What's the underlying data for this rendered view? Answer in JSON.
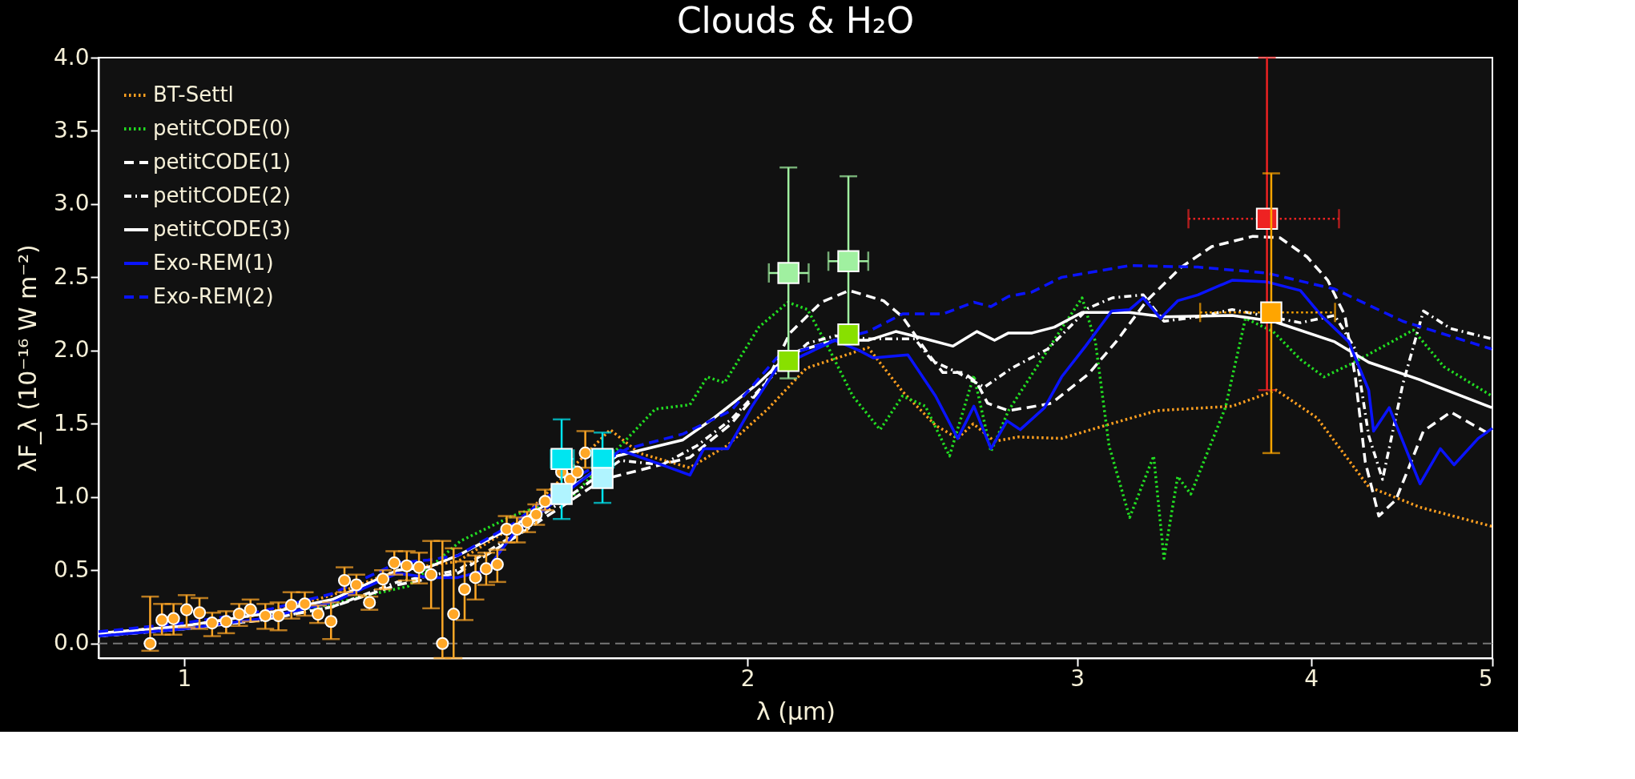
{
  "chart_data": {
    "type": "line",
    "title": "Clouds & H₂O",
    "xlabel": "λ (µm)",
    "ylabel": "λF_λ (10⁻¹⁶ W m⁻²)",
    "log": "x",
    "xlim": [
      0.9,
      5
    ],
    "xticks": [
      1,
      2,
      3,
      4,
      5
    ],
    "ylim": [
      -0.1,
      4.0
    ],
    "yticks": [
      {
        "value": 0,
        "label": "0.0"
      },
      {
        "value": 0.5,
        "label": "0.5"
      },
      {
        "value": 1,
        "label": "1.0"
      },
      {
        "value": 1.5,
        "label": "1.5"
      },
      {
        "value": 2,
        "label": "2.0"
      },
      {
        "value": 2.5,
        "label": "2.5"
      },
      {
        "value": 3,
        "label": "3.0"
      },
      {
        "value": 3.5,
        "label": "3.5"
      },
      {
        "value": 4,
        "label": "4.0"
      }
    ],
    "grid": false,
    "legend": "top left",
    "ref_lines": [
      {
        "axis": "y",
        "value": 0,
        "color": "#777777",
        "line_style": "dashed"
      }
    ],
    "series": [
      {
        "name": "BT-Settl",
        "color": "#ffa020",
        "line_style": "dotted",
        "x": [
          0.9,
          1.0,
          1.1,
          1.2,
          1.3,
          1.4,
          1.5,
          1.689,
          1.75,
          1.862,
          1.95,
          2.05,
          2.15,
          2.32,
          2.42,
          2.52,
          2.59,
          2.64,
          2.71,
          2.79,
          2.943,
          3.108,
          3.31,
          3.63,
          3.833,
          4.03,
          4.294,
          4.574,
          4.996
        ],
        "values": [
          0.07,
          0.12,
          0.2,
          0.33,
          0.5,
          0.56,
          0.8,
          1.46,
          1.3,
          1.2,
          1.35,
          1.6,
          1.88,
          2.02,
          1.72,
          1.49,
          1.4,
          1.5,
          1.38,
          1.41,
          1.4,
          1.49,
          1.59,
          1.62,
          1.73,
          1.54,
          1.07,
          0.93,
          0.8
        ]
      },
      {
        "name": "petitCODE(0)",
        "color": "#22dd22",
        "line_style": "dotted",
        "x": [
          1.1,
          1.2,
          1.253,
          1.317,
          1.405,
          1.497,
          1.617,
          1.725,
          1.785,
          1.863,
          1.903,
          1.944,
          2.028,
          2.102,
          2.153,
          2.209,
          2.276,
          2.354,
          2.42,
          2.489,
          2.564,
          2.642,
          2.698,
          2.757,
          2.943,
          3.018,
          3.068,
          3.12,
          3.2,
          3.296,
          3.338,
          3.395,
          3.45,
          3.6,
          3.69,
          3.818,
          3.948,
          4.064,
          4.204,
          4.536,
          4.71,
          4.996
        ],
        "values": [
          0.17,
          0.27,
          0.33,
          0.39,
          0.7,
          0.87,
          1.02,
          1.4,
          1.6,
          1.63,
          1.82,
          1.78,
          2.16,
          2.33,
          2.28,
          2.02,
          1.69,
          1.46,
          1.69,
          1.62,
          1.28,
          1.83,
          1.31,
          1.59,
          2.15,
          2.36,
          2.06,
          1.35,
          0.86,
          1.28,
          0.58,
          1.14,
          1.02,
          1.61,
          2.22,
          2.13,
          1.94,
          1.82,
          1.91,
          2.14,
          1.89,
          1.69
        ]
      },
      {
        "name": "petitCODE(1)",
        "color": "#ffffff",
        "line_style": "dashed",
        "x": [
          0.9,
          1.0,
          1.1,
          1.2,
          1.3,
          1.4,
          1.5,
          1.674,
          1.863,
          1.96,
          2.046,
          2.107,
          2.19,
          2.266,
          2.364,
          2.42,
          2.5,
          2.543,
          2.608,
          2.652,
          2.687,
          2.757,
          2.82,
          2.907,
          3.042,
          3.147,
          3.268,
          3.41,
          3.54,
          3.724,
          3.85,
          3.98,
          4.083,
          4.17,
          4.224,
          4.276,
          4.348,
          4.44,
          4.593,
          4.75,
          4.996
        ],
        "values": [
          0.05,
          0.1,
          0.16,
          0.25,
          0.4,
          0.48,
          0.72,
          1.12,
          1.27,
          1.5,
          1.78,
          2.12,
          2.33,
          2.41,
          2.34,
          2.23,
          1.97,
          1.85,
          1.85,
          1.78,
          1.64,
          1.59,
          1.61,
          1.64,
          1.84,
          2.06,
          2.34,
          2.57,
          2.71,
          2.78,
          2.77,
          2.64,
          2.48,
          2.24,
          1.82,
          1.24,
          0.87,
          0.98,
          1.45,
          1.58,
          1.42
        ]
      },
      {
        "name": "petitCODE(2)",
        "color": "#ffffff",
        "line_style": "dashdot",
        "x": [
          0.9,
          1.0,
          1.1,
          1.2,
          1.3,
          1.4,
          1.5,
          1.71,
          1.8,
          1.879,
          1.96,
          2.063,
          2.153,
          2.227,
          2.32,
          2.457,
          2.51,
          2.59,
          2.676,
          2.768,
          2.893,
          3.042,
          3.133,
          3.254,
          3.338,
          3.48,
          3.63,
          3.948,
          4.118,
          4.224,
          4.294,
          4.368,
          4.478,
          4.593,
          4.75,
          4.996
        ],
        "values": [
          0.05,
          0.1,
          0.16,
          0.25,
          0.42,
          0.5,
          0.74,
          1.25,
          1.22,
          1.35,
          1.53,
          1.83,
          2.05,
          2.1,
          2.08,
          2.08,
          1.93,
          1.85,
          1.75,
          1.88,
          2.01,
          2.29,
          2.36,
          2.38,
          2.2,
          2.23,
          2.28,
          2.19,
          2.24,
          2.01,
          1.42,
          1.12,
          1.77,
          2.27,
          2.15,
          2.08
        ]
      },
      {
        "name": "petitCODE(3)",
        "color": "#ffffff",
        "line_style": "solid",
        "x": [
          0.9,
          1.0,
          1.1,
          1.2,
          1.3,
          1.35,
          1.4,
          1.5,
          1.703,
          1.847,
          1.919,
          2.028,
          2.107,
          2.227,
          2.32,
          2.4,
          2.489,
          2.575,
          2.652,
          2.71,
          2.757,
          2.838,
          2.917,
          3.018,
          3.2,
          3.338,
          3.63,
          3.818,
          4.118,
          4.294,
          4.574,
          4.996
        ],
        "values": [
          0.07,
          0.12,
          0.2,
          0.3,
          0.5,
          0.52,
          0.6,
          0.8,
          1.28,
          1.39,
          1.54,
          1.78,
          1.98,
          2.07,
          2.07,
          2.13,
          2.08,
          2.03,
          2.13,
          2.07,
          2.12,
          2.12,
          2.16,
          2.26,
          2.26,
          2.23,
          2.24,
          2.2,
          2.06,
          1.92,
          1.8,
          1.61
        ]
      },
      {
        "name": "Exo-REM(1)",
        "color": "#0a14ff",
        "line_style": "solid",
        "x": [
          0.9,
          1.0,
          1.1,
          1.2,
          1.3,
          1.35,
          1.4,
          1.45,
          1.5,
          1.71,
          1.8,
          1.863,
          1.895,
          1.952,
          2.011,
          2.073,
          2.143,
          2.227,
          2.295,
          2.334,
          2.436,
          2.52,
          2.59,
          2.642,
          2.698,
          2.752,
          2.797,
          2.882,
          2.943,
          3.031,
          3.13,
          3.2,
          3.254,
          3.324,
          3.395,
          3.48,
          3.63,
          3.785,
          3.948,
          4.05,
          4.19,
          4.294,
          4.32,
          4.404,
          4.574,
          4.69,
          4.77,
          4.913,
          5.0
        ],
        "values": [
          0.05,
          0.1,
          0.17,
          0.28,
          0.48,
          0.45,
          0.45,
          0.5,
          0.75,
          1.32,
          1.22,
          1.15,
          1.33,
          1.33,
          1.62,
          1.88,
          1.97,
          2.07,
          2.0,
          1.95,
          1.97,
          1.69,
          1.4,
          1.62,
          1.33,
          1.52,
          1.46,
          1.61,
          1.82,
          2.03,
          2.27,
          2.28,
          2.36,
          2.22,
          2.34,
          2.38,
          2.48,
          2.47,
          2.41,
          2.24,
          2.06,
          1.73,
          1.45,
          1.61,
          1.09,
          1.33,
          1.22,
          1.4,
          1.47
        ]
      },
      {
        "name": "Exo-REM(2)",
        "color": "#0a14ff",
        "line_style": "dashed",
        "x": [
          0.9,
          1.0,
          1.1,
          1.2,
          1.3,
          1.35,
          1.4,
          1.5,
          1.6,
          1.725,
          1.847,
          1.96,
          2.073,
          2.227,
          2.32,
          2.42,
          2.543,
          2.642,
          2.698,
          2.757,
          2.838,
          2.943,
          3.2,
          3.48,
          3.785,
          4.118,
          4.478,
          4.996
        ],
        "values": [
          0.08,
          0.14,
          0.22,
          0.34,
          0.55,
          0.57,
          0.6,
          0.82,
          1.1,
          1.33,
          1.43,
          1.59,
          1.95,
          2.07,
          2.13,
          2.25,
          2.25,
          2.33,
          2.3,
          2.37,
          2.4,
          2.5,
          2.58,
          2.57,
          2.53,
          2.42,
          2.2,
          2.01
        ]
      },
      {
        "type": "scatter",
        "marker": "circle",
        "color": "#ffa726",
        "x": [
          0.959,
          0.973,
          0.987,
          1.003,
          1.019,
          1.035,
          1.053,
          1.07,
          1.085,
          1.105,
          1.123,
          1.141,
          1.16,
          1.179,
          1.198,
          1.218,
          1.236,
          1.256,
          1.277,
          1.295,
          1.315,
          1.335,
          1.355,
          1.374,
          1.393,
          1.412,
          1.431,
          1.45,
          1.47,
          1.487,
          1.506,
          1.525,
          1.542,
          1.559,
          1.591,
          1.608,
          1.622,
          1.638
        ],
        "values": [
          0,
          0.16,
          0.17,
          0.23,
          0.21,
          0.14,
          0.15,
          0.2,
          0.23,
          0.19,
          0.19,
          0.26,
          0.27,
          0.2,
          0.15,
          0.43,
          0.4,
          0.28,
          0.44,
          0.55,
          0.53,
          0.52,
          0.47,
          0,
          0.2,
          0.37,
          0.45,
          0.51,
          0.54,
          0.78,
          0.78,
          0.83,
          0.88,
          0.97,
          1.17,
          1.12,
          1.17,
          1.3
        ],
        "errors": [
          [
            -0.05,
            0.32
          ],
          [
            0.06,
            0.27
          ],
          [
            0.06,
            0.27
          ],
          [
            0.11,
            0.33
          ],
          [
            0.1,
            0.31
          ],
          [
            0.05,
            0.21
          ],
          [
            0.07,
            0.22
          ],
          [
            0.12,
            0.27
          ],
          [
            0.15,
            0.3
          ],
          [
            0.1,
            0.27
          ],
          [
            0.09,
            0.28
          ],
          [
            0.17,
            0.35
          ],
          [
            0.19,
            0.35
          ],
          [
            0.14,
            0.26
          ],
          [
            0.03,
            0.28
          ],
          [
            0.35,
            0.52
          ],
          [
            0.33,
            0.47
          ],
          [
            0.23,
            0.32
          ],
          [
            0.37,
            0.5
          ],
          [
            0.47,
            0.63
          ],
          [
            0.43,
            0.63
          ],
          [
            0.41,
            0.62
          ],
          [
            0.24,
            0.7
          ],
          [
            -0.1,
            0.7
          ],
          [
            -0.1,
            0.65
          ],
          [
            0.16,
            0.56
          ],
          [
            0.3,
            0.6
          ],
          [
            0.4,
            0.62
          ],
          [
            0.42,
            0.64
          ],
          [
            0.69,
            0.87
          ],
          [
            0.69,
            0.86
          ],
          [
            0.76,
            0.9
          ],
          [
            0.81,
            0.95
          ],
          [
            0.91,
            1.05
          ],
          null,
          null,
          null,
          [
            1.2,
            1.45
          ]
        ]
      },
      {
        "type": "scatter",
        "marker": "square",
        "color": "#00e5f0",
        "x": [
          1.591,
          1.673
        ],
        "values": [
          1.26,
          1.26
        ],
        "errors": [
          [
            0.85,
            1.53
          ],
          [
            0.96,
            1.44
          ]
        ],
        "xerrors": [
          [
            1.57,
            1.615
          ],
          [
            1.651,
            1.696
          ]
        ]
      },
      {
        "type": "scatter",
        "marker": "square",
        "color": "#b0f4ff",
        "x": [
          1.591,
          1.673
        ],
        "values": [
          1.02,
          1.13
        ]
      },
      {
        "type": "scatter",
        "marker": "square",
        "color": "#a0f0a0",
        "x": [
          2.103,
          2.264
        ],
        "values": [
          2.53,
          2.61
        ],
        "errors": [
          [
            1.81,
            3.25
          ],
          [
            2.05,
            3.19
          ]
        ],
        "xerrors": [
          [
            2.053,
            2.156
          ],
          [
            2.209,
            2.32
          ]
        ]
      },
      {
        "type": "scatter",
        "marker": "square",
        "color": "#88e000",
        "x": [
          2.103,
          2.264
        ],
        "values": [
          1.93,
          2.11
        ]
      },
      {
        "type": "scatter",
        "marker": "square",
        "color": "#ee2222",
        "line_style": "dotted",
        "x": [
          3.789
        ],
        "values": [
          2.9
        ],
        "errors": [
          [
            1.73,
            4.0
          ]
        ],
        "xerrors": [
          [
            3.44,
            4.14
          ]
        ]
      },
      {
        "type": "scatter",
        "marker": "square",
        "color": "#ffa500",
        "line_style": "dotted",
        "x": [
          3.809
        ],
        "values": [
          2.26
        ],
        "errors": [
          [
            1.3,
            3.21
          ]
        ],
        "xerrors": [
          [
            3.49,
            4.12
          ]
        ]
      }
    ]
  }
}
